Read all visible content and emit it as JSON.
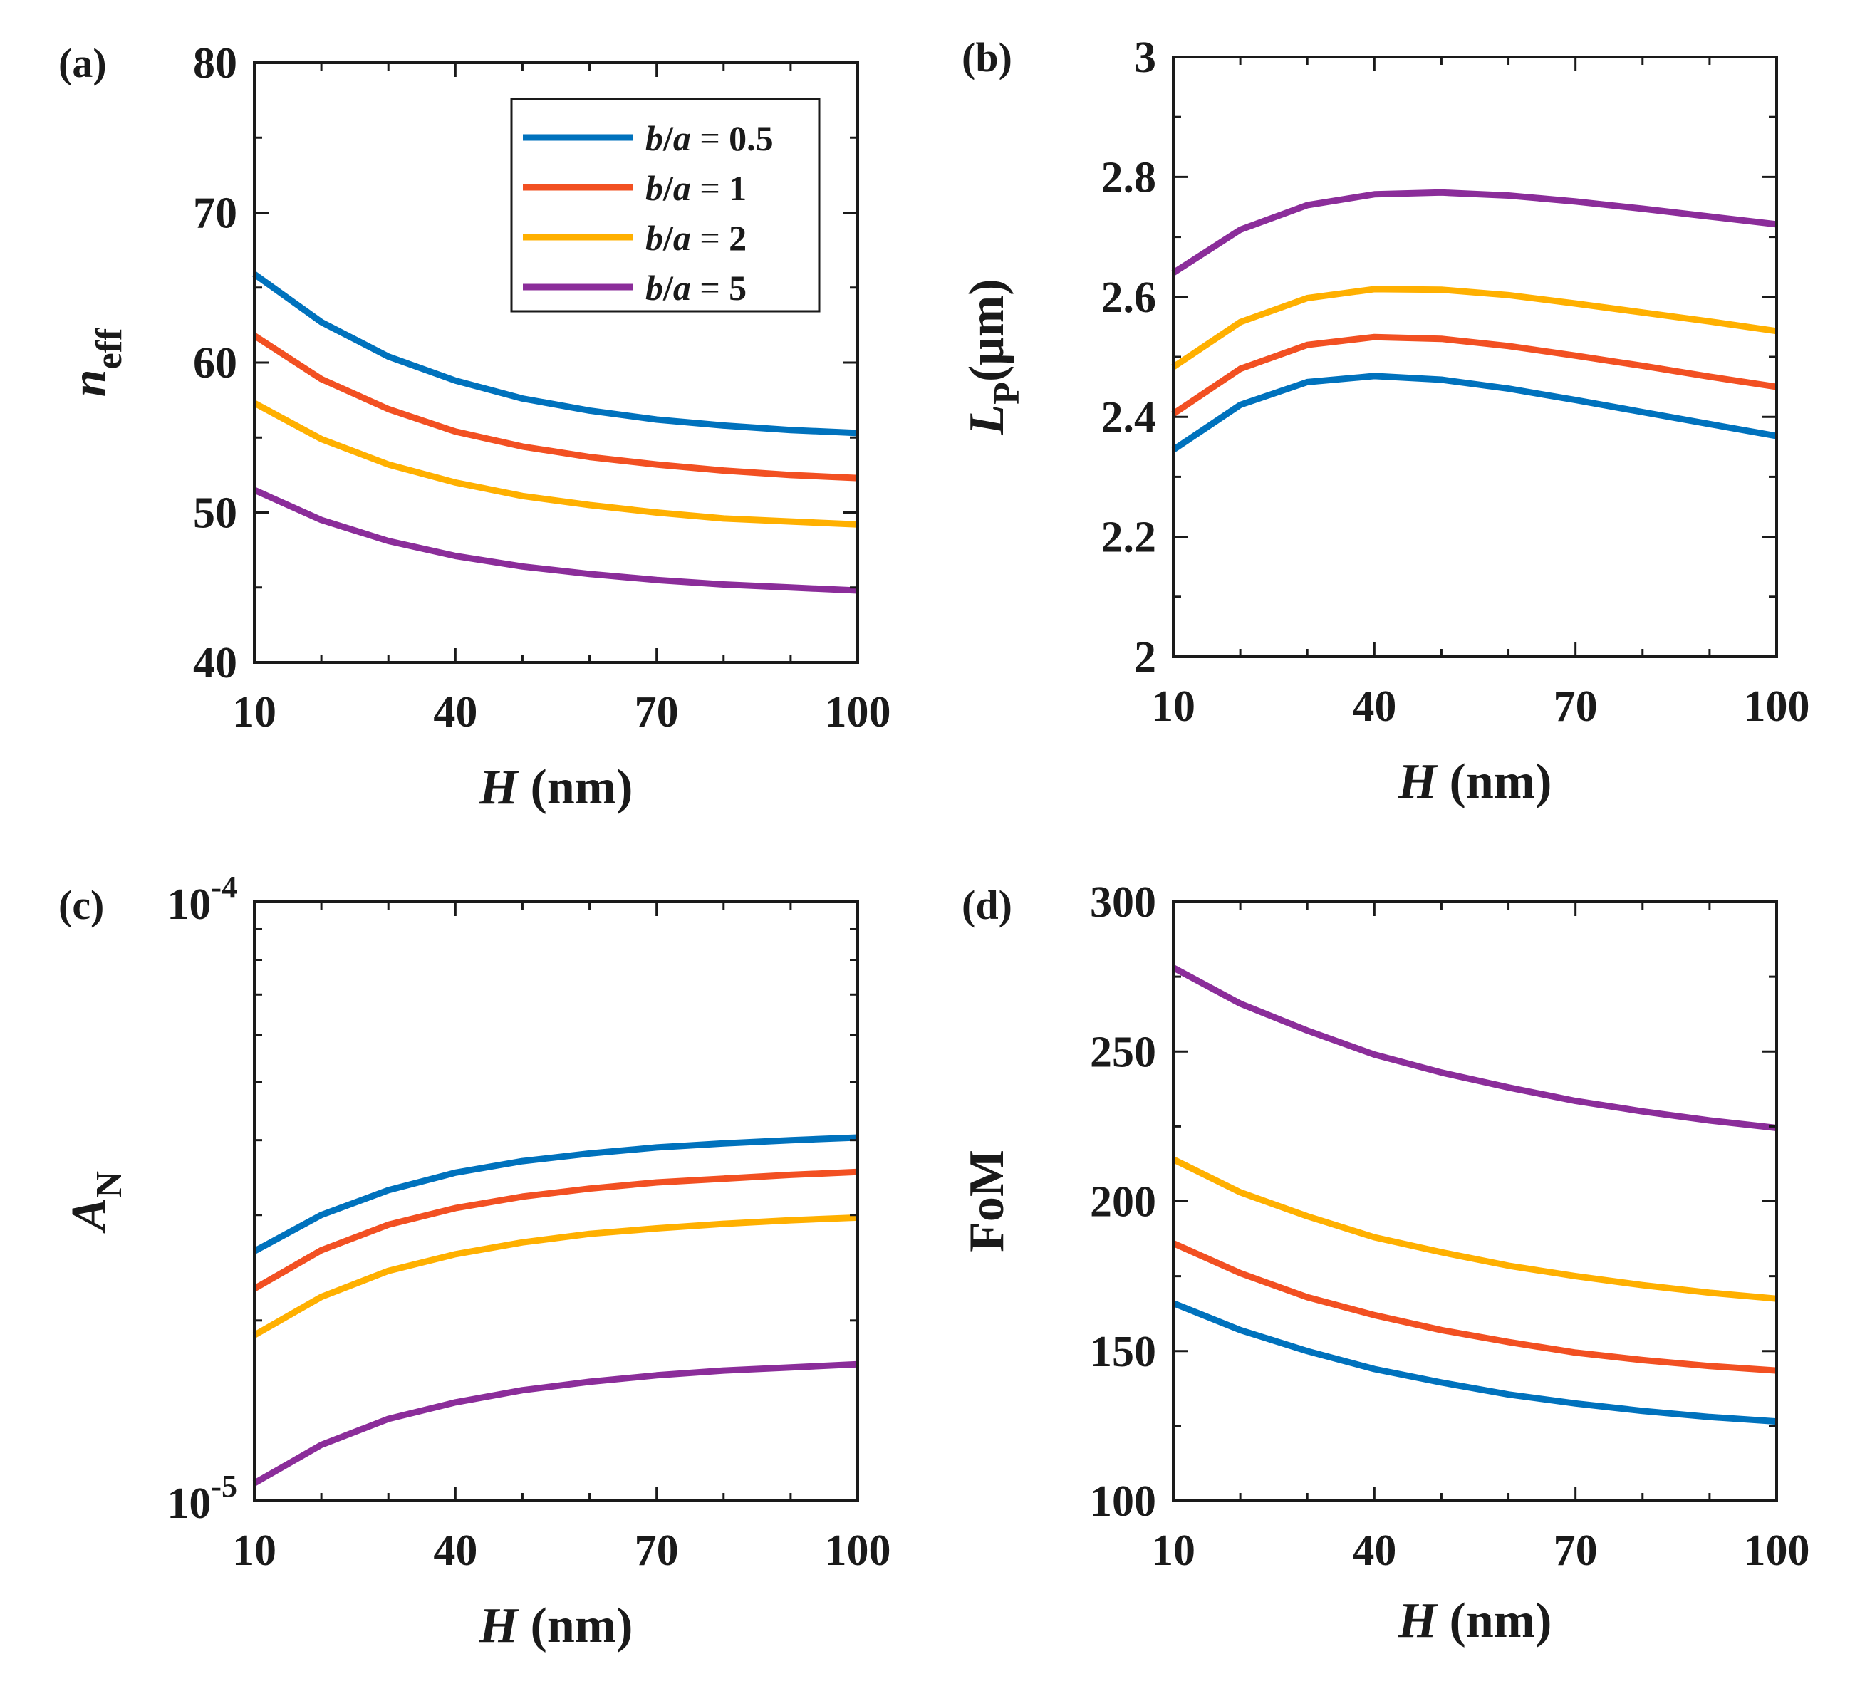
{
  "colors": {
    "b_a_0_5": "#0072BD",
    "b_a_1": "#F25022",
    "b_a_2": "#FFB000",
    "b_a_5": "#8B2D9A"
  },
  "legend": [
    {
      "var": "b",
      "slash": "/",
      "var2": "a",
      "eq": "=",
      "value": "0.5",
      "color_key": "b_a_0_5"
    },
    {
      "var": "b",
      "slash": "/",
      "var2": "a",
      "eq": "=",
      "value": "1",
      "color_key": "b_a_1"
    },
    {
      "var": "b",
      "slash": "/",
      "var2": "a",
      "eq": "=",
      "value": "2",
      "color_key": "b_a_2"
    },
    {
      "var": "b",
      "slash": "/",
      "var2": "a",
      "eq": "=",
      "value": "5",
      "color_key": "b_a_5"
    }
  ],
  "chart_data": [
    {
      "panel": "(a)",
      "type": "line",
      "title": "",
      "ylabel_main": "n",
      "ylabel_sub": "eff",
      "xlabel_var": "H",
      "xlabel_unit": "(nm)",
      "xlim": [
        10,
        100
      ],
      "ylim": [
        40,
        80
      ],
      "yscale": "linear",
      "xticks": [
        10,
        40,
        70,
        100
      ],
      "xtick_labels": [
        "10",
        "40",
        "70",
        "100"
      ],
      "yticks": [
        40,
        50,
        60,
        70,
        80
      ],
      "ytick_labels": [
        "40",
        "50",
        "60",
        "70",
        "80"
      ],
      "legend_position": "top-right",
      "x": [
        10,
        20,
        30,
        40,
        50,
        60,
        70,
        80,
        90,
        100
      ],
      "series": [
        {
          "name": "b/a = 0.5",
          "color_key": "b_a_0_5",
          "values": [
            65.9,
            62.7,
            60.4,
            58.8,
            57.6,
            56.8,
            56.2,
            55.8,
            55.5,
            55.3
          ]
        },
        {
          "name": "b/a = 1",
          "color_key": "b_a_1",
          "values": [
            61.8,
            58.9,
            56.9,
            55.4,
            54.4,
            53.7,
            53.2,
            52.8,
            52.5,
            52.3
          ]
        },
        {
          "name": "b/a = 2",
          "color_key": "b_a_2",
          "values": [
            57.3,
            54.9,
            53.2,
            52.0,
            51.1,
            50.5,
            50.0,
            49.6,
            49.4,
            49.2
          ]
        },
        {
          "name": "b/a = 5",
          "color_key": "b_a_5",
          "values": [
            51.5,
            49.5,
            48.1,
            47.1,
            46.4,
            45.9,
            45.5,
            45.2,
            45.0,
            44.8
          ]
        }
      ]
    },
    {
      "panel": "(b)",
      "type": "line",
      "title": "",
      "ylabel_main": "L",
      "ylabel_sub": "P",
      "ylabel_unit": "(μm)",
      "xlabel_var": "H",
      "xlabel_unit": "(nm)",
      "xlim": [
        10,
        100
      ],
      "ylim": [
        2,
        3
      ],
      "yscale": "linear",
      "xticks": [
        10,
        40,
        70,
        100
      ],
      "xtick_labels": [
        "10",
        "40",
        "70",
        "100"
      ],
      "yticks": [
        2,
        2.2,
        2.4,
        2.6,
        2.8,
        3
      ],
      "ytick_labels": [
        "2",
        "2.2",
        "2.4",
        "2.6",
        "2.8",
        "3"
      ],
      "x": [
        10,
        20,
        30,
        40,
        50,
        60,
        70,
        80,
        90,
        100
      ],
      "series": [
        {
          "name": "b/a = 0.5",
          "color_key": "b_a_0_5",
          "values": [
            2.345,
            2.42,
            2.458,
            2.468,
            2.462,
            2.447,
            2.428,
            2.408,
            2.388,
            2.368
          ]
        },
        {
          "name": "b/a = 1",
          "color_key": "b_a_1",
          "values": [
            2.405,
            2.48,
            2.52,
            2.533,
            2.53,
            2.518,
            2.502,
            2.485,
            2.467,
            2.45
          ]
        },
        {
          "name": "b/a = 2",
          "color_key": "b_a_2",
          "values": [
            2.483,
            2.558,
            2.598,
            2.613,
            2.612,
            2.603,
            2.589,
            2.574,
            2.559,
            2.543
          ]
        },
        {
          "name": "b/a = 5",
          "color_key": "b_a_5",
          "values": [
            2.64,
            2.712,
            2.753,
            2.771,
            2.774,
            2.769,
            2.759,
            2.747,
            2.734,
            2.721
          ]
        }
      ]
    },
    {
      "panel": "(c)",
      "type": "line",
      "title": "",
      "ylabel_main": "A",
      "ylabel_sub": "N",
      "xlabel_var": "H",
      "xlabel_unit": "(nm)",
      "xlim": [
        10,
        100
      ],
      "ylim": [
        1e-05,
        0.0001
      ],
      "yscale": "log",
      "xticks": [
        10,
        40,
        70,
        100
      ],
      "xtick_labels": [
        "10",
        "40",
        "70",
        "100"
      ],
      "yticks": [
        1e-05,
        0.0001
      ],
      "ytick_labels": [
        {
          "base": "10",
          "exp": "-5"
        },
        {
          "base": "10",
          "exp": "-4"
        }
      ],
      "x": [
        10,
        20,
        30,
        40,
        50,
        60,
        70,
        80,
        90,
        100
      ],
      "series": [
        {
          "name": "b/a = 0.5",
          "color_key": "b_a_0_5",
          "values": [
            2.61e-05,
            3e-05,
            3.3e-05,
            3.53e-05,
            3.69e-05,
            3.8e-05,
            3.89e-05,
            3.95e-05,
            4e-05,
            4.04e-05
          ]
        },
        {
          "name": "b/a = 1",
          "color_key": "b_a_1",
          "values": [
            2.26e-05,
            2.62e-05,
            2.89e-05,
            3.08e-05,
            3.22e-05,
            3.32e-05,
            3.4e-05,
            3.45e-05,
            3.5e-05,
            3.54e-05
          ]
        },
        {
          "name": "b/a = 2",
          "color_key": "b_a_2",
          "values": [
            1.89e-05,
            2.19e-05,
            2.42e-05,
            2.58e-05,
            2.7e-05,
            2.79e-05,
            2.85e-05,
            2.9e-05,
            2.94e-05,
            2.97e-05
          ]
        },
        {
          "name": "b/a = 5",
          "color_key": "b_a_5",
          "values": [
            1.07e-05,
            1.24e-05,
            1.37e-05,
            1.46e-05,
            1.53e-05,
            1.58e-05,
            1.62e-05,
            1.65e-05,
            1.67e-05,
            1.69e-05
          ]
        }
      ]
    },
    {
      "panel": "(d)",
      "type": "line",
      "title": "",
      "ylabel_main": "FoM",
      "xlabel_var": "H",
      "xlabel_unit": "(nm)",
      "xlim": [
        10,
        100
      ],
      "ylim": [
        100,
        300
      ],
      "yscale": "linear",
      "xticks": [
        10,
        40,
        70,
        100
      ],
      "xtick_labels": [
        "10",
        "40",
        "70",
        "100"
      ],
      "yticks": [
        100,
        150,
        200,
        250,
        300
      ],
      "ytick_labels": [
        "100",
        "150",
        "200",
        "250",
        "300"
      ],
      "x": [
        10,
        20,
        30,
        40,
        50,
        60,
        70,
        80,
        90,
        100
      ],
      "series": [
        {
          "name": "b/a = 0.5",
          "color_key": "b_a_0_5",
          "values": [
            166,
            157,
            150,
            144,
            139.5,
            135.5,
            132.5,
            130,
            128,
            126.5
          ]
        },
        {
          "name": "b/a = 1",
          "color_key": "b_a_1",
          "values": [
            186,
            176,
            168,
            162,
            157,
            153,
            149.5,
            147,
            145,
            143.5
          ]
        },
        {
          "name": "b/a = 2",
          "color_key": "b_a_2",
          "values": [
            214,
            203,
            195,
            188,
            183,
            178.5,
            175,
            172,
            169.5,
            167.5
          ]
        },
        {
          "name": "b/a = 5",
          "color_key": "b_a_5",
          "values": [
            278,
            266,
            257,
            249,
            243,
            238,
            233.5,
            230,
            227,
            224.5
          ]
        }
      ]
    }
  ]
}
